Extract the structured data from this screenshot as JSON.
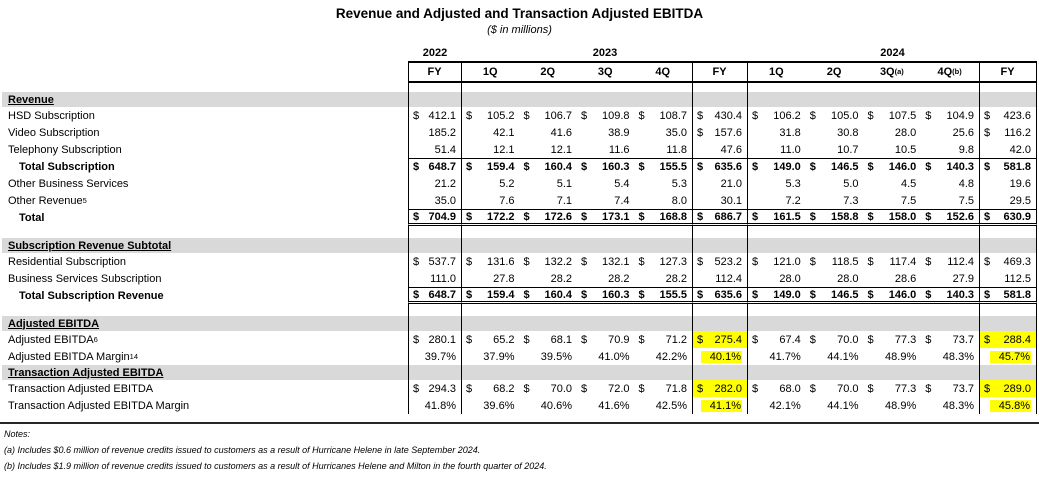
{
  "title": "Revenue and Adjusted and Transaction Adjusted EBITDA",
  "subtitle": "($ in millions)",
  "colors": {
    "highlight": "#FFFF00",
    "section_band": "#D9D9D9"
  },
  "table": {
    "year_groups": [
      {
        "label": "2022",
        "span": 1
      },
      {
        "label": "2023",
        "span": 5
      },
      {
        "label": "2024",
        "span": 5
      }
    ],
    "columns": [
      {
        "label": "FY"
      },
      {
        "label": "1Q"
      },
      {
        "label": "2Q"
      },
      {
        "label": "3Q"
      },
      {
        "label": "4Q"
      },
      {
        "label": "FY"
      },
      {
        "label": "1Q"
      },
      {
        "label": "2Q"
      },
      {
        "label": "3Q",
        "sup": "(a)"
      },
      {
        "label": "4Q",
        "sup": "(b)"
      },
      {
        "label": "FY"
      }
    ],
    "rows": [
      {
        "type": "section",
        "label": "Revenue"
      },
      {
        "type": "data",
        "label": "HSD Subscription",
        "dollar": "all",
        "values": [
          "412.1",
          "105.2",
          "106.7",
          "109.8",
          "108.7",
          "430.4",
          "106.2",
          "105.0",
          "107.5",
          "104.9",
          "423.6"
        ]
      },
      {
        "type": "data",
        "label": "Video Subscription",
        "dollar": "fy",
        "values": [
          "185.2",
          "42.1",
          "41.6",
          "38.9",
          "35.0",
          "157.6",
          "31.8",
          "30.8",
          "28.0",
          "25.6",
          "116.2"
        ]
      },
      {
        "type": "data",
        "label": "Telephony Subscription",
        "dollar": "none",
        "values": [
          "51.4",
          "12.1",
          "12.1",
          "11.6",
          "11.8",
          "47.6",
          "11.0",
          "10.7",
          "10.5",
          "9.8",
          "42.0"
        ]
      },
      {
        "type": "data",
        "label": "Total Subscription",
        "bold": true,
        "indent": true,
        "rule_top": true,
        "dollar": "all",
        "values": [
          "648.7",
          "159.4",
          "160.4",
          "160.3",
          "155.5",
          "635.6",
          "149.0",
          "146.5",
          "146.0",
          "140.3",
          "581.8"
        ]
      },
      {
        "type": "data",
        "label": "Other Business Services",
        "dollar": "none",
        "values": [
          "21.2",
          "5.2",
          "5.1",
          "5.4",
          "5.3",
          "21.0",
          "5.3",
          "5.0",
          "4.5",
          "4.8",
          "19.6"
        ]
      },
      {
        "type": "data",
        "label": "Other Revenue",
        "sup": "5",
        "dollar": "none",
        "values": [
          "35.0",
          "7.6",
          "7.1",
          "7.4",
          "8.0",
          "30.1",
          "7.2",
          "7.3",
          "7.5",
          "7.5",
          "29.5"
        ]
      },
      {
        "type": "data",
        "label": "Total",
        "bold": true,
        "indent": true,
        "rule_top": true,
        "double_bottom": true,
        "dollar": "all",
        "values": [
          "704.9",
          "172.2",
          "172.6",
          "173.1",
          "168.8",
          "686.7",
          "161.5",
          "158.8",
          "158.0",
          "152.6",
          "630.9"
        ]
      },
      {
        "type": "spacer"
      },
      {
        "type": "section",
        "label": "Subscription Revenue Subtotal"
      },
      {
        "type": "data",
        "label": "Residential Subscription",
        "dollar": "all",
        "values": [
          "537.7",
          "131.6",
          "132.2",
          "132.1",
          "127.3",
          "523.2",
          "121.0",
          "118.5",
          "117.4",
          "112.4",
          "469.3"
        ]
      },
      {
        "type": "data",
        "label": "Business Services Subscription",
        "dollar": "none",
        "values": [
          "111.0",
          "27.8",
          "28.2",
          "28.2",
          "28.2",
          "112.4",
          "28.0",
          "28.0",
          "28.6",
          "27.9",
          "112.5"
        ]
      },
      {
        "type": "data",
        "label": "Total Subscription Revenue",
        "bold": true,
        "indent": true,
        "rule_top": true,
        "double_bottom": true,
        "dollar": "all",
        "values": [
          "648.7",
          "159.4",
          "160.4",
          "160.3",
          "155.5",
          "635.6",
          "149.0",
          "146.5",
          "146.0",
          "140.3",
          "581.8"
        ]
      },
      {
        "type": "spacer"
      },
      {
        "type": "section",
        "label": "Adjusted EBITDA"
      },
      {
        "type": "data",
        "label": "Adjusted EBITDA",
        "sup": " 6",
        "dollar": "all",
        "highlight_fy": true,
        "values": [
          "280.1",
          "65.2",
          "68.1",
          "70.9",
          "71.2",
          "275.4",
          "67.4",
          "70.0",
          "77.3",
          "73.7",
          "288.4"
        ]
      },
      {
        "type": "data",
        "label": "Adjusted EBITDA Margin",
        "sup": " 14",
        "dollar": "none",
        "highlight_fy": true,
        "values": [
          "39.7%",
          "37.9%",
          "39.5%",
          "41.0%",
          "42.2%",
          "40.1%",
          "41.7%",
          "44.1%",
          "48.9%",
          "48.3%",
          "45.7%"
        ]
      },
      {
        "type": "section",
        "label": "Transaction Adjusted EBITDA"
      },
      {
        "type": "data",
        "label": "Transaction Adjusted EBITDA",
        "dollar": "all",
        "highlight_fy": true,
        "values": [
          "294.3",
          "68.2",
          "70.0",
          "72.0",
          "71.8",
          "282.0",
          "68.0",
          "70.0",
          "77.3",
          "73.7",
          "289.0"
        ]
      },
      {
        "type": "data",
        "label": "Transaction Adjusted EBITDA Margin",
        "dollar": "none",
        "highlight_fy": true,
        "values": [
          "41.8%",
          "39.6%",
          "40.6%",
          "41.6%",
          "42.5%",
          "41.1%",
          "42.1%",
          "44.1%",
          "48.9%",
          "48.3%",
          "45.8%"
        ]
      }
    ]
  },
  "notes": {
    "heading": "Notes:",
    "items": [
      "(a) Includes $0.6 million of revenue credits issued to customers as a result of Hurricane Helene in late September 2024.",
      "(b) Includes $1.9 million of revenue credits issued to customers as a result of Hurricanes Helene and Milton in the fourth quarter of 2024."
    ]
  }
}
